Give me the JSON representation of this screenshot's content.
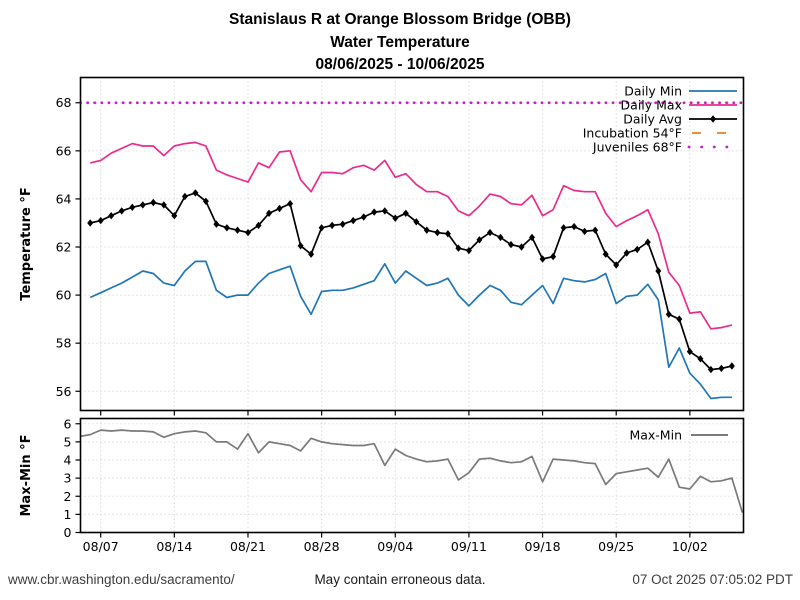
{
  "title": {
    "line1": "Stanislaus R at Orange Blossom Bridge (OBB)",
    "line2": "Water Temperature",
    "line3": "08/06/2025 - 10/06/2025"
  },
  "footer": {
    "left": "www.cbr.washington.edu/sacramento/",
    "center": "May contain erroneous data.",
    "right": "07 Oct 2025 07:05:02 PDT"
  },
  "colors": {
    "daily_min": "#2077b4",
    "daily_max": "#e82c8e",
    "daily_avg": "#000000",
    "incubation": "#e5801f",
    "juveniles": "#bc28bc",
    "max_min": "#7a7a7a",
    "grid": "#c9c9c9",
    "frame": "#000000"
  },
  "chart_data": [
    {
      "type": "line",
      "title": "Stanislaus R at Orange Blossom Bridge (OBB) Water Temperature 08/06/2025 - 10/06/2025",
      "xlabel": "",
      "ylabel": "Temperature °F",
      "ylim": [
        55.2,
        69.05
      ],
      "yticks": [
        56,
        58,
        60,
        62,
        64,
        66,
        68
      ],
      "grid": true,
      "legend_position": "upper right",
      "x_start_date": "08/06/2025",
      "x_step_days": 1,
      "dates": [
        "08/06",
        "08/07",
        "08/08",
        "08/09",
        "08/10",
        "08/11",
        "08/12",
        "08/13",
        "08/14",
        "08/15",
        "08/16",
        "08/17",
        "08/18",
        "08/19",
        "08/20",
        "08/21",
        "08/22",
        "08/23",
        "08/24",
        "08/25",
        "08/26",
        "08/27",
        "08/28",
        "08/29",
        "08/30",
        "08/31",
        "09/01",
        "09/02",
        "09/03",
        "09/04",
        "09/05",
        "09/06",
        "09/07",
        "09/08",
        "09/09",
        "09/10",
        "09/11",
        "09/12",
        "09/13",
        "09/14",
        "09/15",
        "09/16",
        "09/17",
        "09/18",
        "09/19",
        "09/20",
        "09/21",
        "09/22",
        "09/23",
        "09/24",
        "09/25",
        "09/26",
        "09/27",
        "09/28",
        "09/29",
        "09/30",
        "10/01",
        "10/02",
        "10/03",
        "10/04",
        "10/05",
        "10/06"
      ],
      "xticks": {
        "offsets": [
          1,
          8,
          15,
          22,
          29,
          36,
          43,
          50,
          57
        ],
        "labels": [
          "08/07",
          "08/14",
          "08/21",
          "08/28",
          "09/04",
          "09/11",
          "09/18",
          "09/25",
          "10/02"
        ]
      },
      "series": [
        {
          "name": "Daily Min",
          "color": "#2077b4",
          "values": [
            59.9,
            60.1,
            60.3,
            60.5,
            60.75,
            61.0,
            60.9,
            60.5,
            60.4,
            61.0,
            61.4,
            61.4,
            60.2,
            59.9,
            60.0,
            60.0,
            60.5,
            60.9,
            61.05,
            61.2,
            59.95,
            59.2,
            60.15,
            60.2,
            60.2,
            60.3,
            60.45,
            60.6,
            61.3,
            60.5,
            61.0,
            60.7,
            60.4,
            60.5,
            60.7,
            60.0,
            59.55,
            60.0,
            60.4,
            60.2,
            59.7,
            59.6,
            60.0,
            60.4,
            59.65,
            60.7,
            60.6,
            60.55,
            60.65,
            60.9,
            59.65,
            59.95,
            60.0,
            60.45,
            59.8,
            57.0,
            57.8,
            56.75,
            56.3,
            55.7,
            55.75,
            55.75
          ]
        },
        {
          "name": "Daily Max",
          "color": "#e82c8e",
          "values": [
            65.5,
            65.6,
            65.9,
            66.1,
            66.3,
            66.2,
            66.2,
            65.8,
            66.2,
            66.3,
            66.35,
            66.2,
            65.2,
            65.0,
            64.85,
            64.7,
            65.5,
            65.3,
            65.95,
            66.0,
            64.8,
            64.3,
            65.1,
            65.1,
            65.05,
            65.3,
            65.4,
            65.2,
            65.6,
            64.9,
            65.05,
            64.6,
            64.3,
            64.3,
            64.1,
            63.5,
            63.3,
            63.7,
            64.2,
            64.1,
            63.8,
            63.75,
            64.15,
            63.3,
            63.55,
            64.55,
            64.35,
            64.3,
            64.3,
            63.4,
            62.85,
            63.1,
            63.3,
            63.55,
            62.55,
            60.95,
            60.4,
            59.25,
            59.3,
            58.6,
            58.65,
            58.75
          ]
        },
        {
          "name": "Daily Avg",
          "color": "#000000",
          "marker": "diamond",
          "values": [
            63.0,
            63.1,
            63.3,
            63.5,
            63.65,
            63.75,
            63.85,
            63.75,
            63.3,
            64.1,
            64.25,
            63.9,
            62.95,
            62.8,
            62.7,
            62.6,
            62.9,
            63.4,
            63.6,
            63.8,
            62.05,
            61.7,
            62.8,
            62.9,
            62.95,
            63.1,
            63.25,
            63.45,
            63.5,
            63.2,
            63.4,
            63.05,
            62.7,
            62.6,
            62.55,
            61.95,
            61.85,
            62.3,
            62.6,
            62.4,
            62.1,
            62.0,
            62.4,
            61.5,
            61.6,
            62.8,
            62.85,
            62.65,
            62.7,
            61.7,
            61.25,
            61.75,
            61.9,
            62.2,
            61.0,
            59.2,
            59.0,
            57.65,
            57.35,
            56.9,
            56.95,
            57.05
          ]
        },
        {
          "name": "Incubation 54°F",
          "color": "#e5801f",
          "style": "refline-dashed",
          "y": 54
        },
        {
          "name": "Juveniles 68°F",
          "color": "#bc28bc",
          "style": "refline-dotted",
          "y": 68
        }
      ]
    },
    {
      "type": "line",
      "xlabel": "",
      "ylabel": "Max-Min °F",
      "ylim": [
        0,
        6.29
      ],
      "yticks": [
        0,
        1,
        2,
        3,
        4,
        5,
        6
      ],
      "grid": true,
      "legend_position": "upper right",
      "dates": [
        "08/05",
        "08/06",
        "08/07",
        "08/08",
        "08/09",
        "08/10",
        "08/11",
        "08/12",
        "08/13",
        "08/14",
        "08/15",
        "08/16",
        "08/17",
        "08/18",
        "08/19",
        "08/20",
        "08/21",
        "08/22",
        "08/23",
        "08/24",
        "08/25",
        "08/26",
        "08/27",
        "08/28",
        "08/29",
        "08/30",
        "08/31",
        "09/01",
        "09/02",
        "09/03",
        "09/04",
        "09/05",
        "09/06",
        "09/07",
        "09/08",
        "09/09",
        "09/10",
        "09/11",
        "09/12",
        "09/13",
        "09/14",
        "09/15",
        "09/16",
        "09/17",
        "09/18",
        "09/19",
        "09/20",
        "09/21",
        "09/22",
        "09/23",
        "09/24",
        "09/25",
        "09/26",
        "09/27",
        "09/28",
        "09/29",
        "09/30",
        "10/01",
        "10/02",
        "10/03",
        "10/04",
        "10/05",
        "10/06",
        "10/07"
      ],
      "series": [
        {
          "name": "Max-Min",
          "color": "#7a7a7a",
          "start_day": -1,
          "values": [
            5.3,
            5.4,
            5.65,
            5.6,
            5.65,
            5.6,
            5.6,
            5.55,
            5.25,
            5.45,
            5.55,
            5.6,
            5.5,
            5.0,
            5.0,
            4.6,
            5.45,
            4.4,
            5.0,
            4.9,
            4.8,
            4.5,
            5.2,
            5.0,
            4.9,
            4.85,
            4.8,
            4.8,
            4.9,
            3.7,
            4.6,
            4.25,
            4.05,
            3.9,
            3.95,
            4.05,
            2.9,
            3.3,
            4.05,
            4.1,
            3.95,
            3.85,
            3.9,
            4.2,
            2.8,
            4.05,
            4.0,
            3.95,
            3.85,
            3.8,
            2.65,
            3.25,
            3.35,
            3.45,
            3.55,
            3.05,
            4.05,
            2.5,
            2.4,
            3.1,
            2.8,
            2.85,
            3.0,
            1.1
          ]
        }
      ]
    }
  ]
}
